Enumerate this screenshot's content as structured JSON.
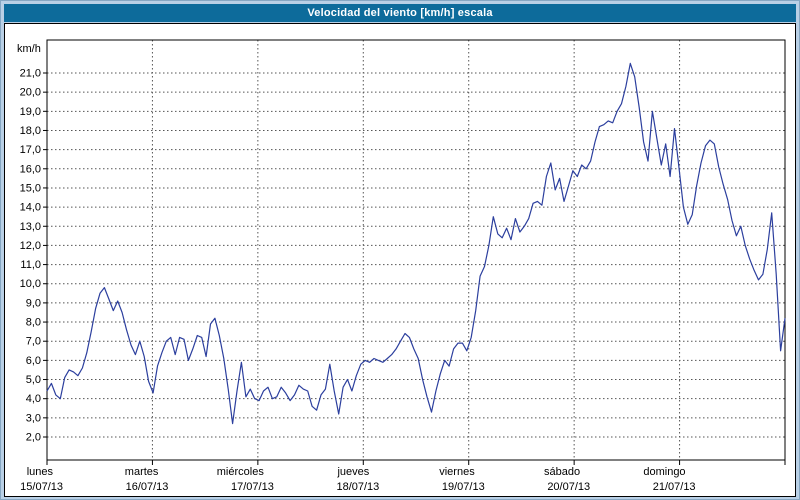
{
  "window": {
    "title": "Velocidad del viento [km/h] escala"
  },
  "colors": {
    "frame": "#b9d0e6",
    "titlebar_bg": "#0d6b9b",
    "titlebar_text": "#ffffff",
    "panel_bg": "#ffffff",
    "plot_border": "#000000",
    "grid": "#555555",
    "line": "#2c3f9e",
    "label_text": "#000000"
  },
  "chart_data": {
    "type": "line",
    "title": "Velocidad del viento [km/h] escala",
    "xlabel": "",
    "ylabel": "km/h",
    "ylim": [
      2,
      21
    ],
    "y_tick_step": 1,
    "y_tick_labels": [
      "2,0",
      "3,0",
      "4,0",
      "5,0",
      "6,0",
      "7,0",
      "8,0",
      "9,0",
      "10,0",
      "11,0",
      "12,0",
      "13,0",
      "14,0",
      "15,0",
      "16,0",
      "17,0",
      "18,0",
      "19,0",
      "20,0",
      "21,0"
    ],
    "grid": true,
    "legend_position": "none",
    "points_per_day": 24,
    "days": [
      {
        "name": "lunes",
        "date": "15/07/13"
      },
      {
        "name": "martes",
        "date": "16/07/13"
      },
      {
        "name": "miércoles",
        "date": "17/07/13"
      },
      {
        "name": "jueves",
        "date": "18/07/13"
      },
      {
        "name": "viernes",
        "date": "19/07/13"
      },
      {
        "name": "sábado",
        "date": "20/07/13"
      },
      {
        "name": "domingo",
        "date": "21/07/13"
      }
    ],
    "series": [
      {
        "name": "Velocidad del viento",
        "values": [
          4.4,
          4.8,
          4.2,
          4.0,
          5.1,
          5.5,
          5.4,
          5.2,
          5.6,
          6.4,
          7.5,
          8.7,
          9.5,
          9.8,
          9.2,
          8.6,
          9.1,
          8.5,
          7.6,
          6.8,
          6.3,
          7.0,
          6.2,
          4.9,
          4.3,
          5.7,
          6.4,
          7.0,
          7.2,
          6.3,
          7.2,
          7.1,
          6.0,
          6.6,
          7.3,
          7.2,
          6.2,
          7.9,
          8.2,
          7.3,
          6.1,
          4.5,
          2.7,
          4.4,
          5.9,
          4.1,
          4.5,
          4.0,
          3.9,
          4.4,
          4.6,
          4.0,
          4.1,
          4.6,
          4.3,
          3.9,
          4.2,
          4.7,
          4.5,
          4.4,
          3.6,
          3.4,
          4.2,
          4.5,
          5.8,
          4.4,
          3.2,
          4.6,
          5.0,
          4.4,
          5.2,
          5.8,
          6.0,
          5.9,
          6.1,
          6.0,
          5.9,
          6.1,
          6.3,
          6.6,
          7.0,
          7.4,
          7.2,
          6.6,
          6.1,
          5.0,
          4.1,
          3.3,
          4.4,
          5.3,
          6.0,
          5.7,
          6.6,
          6.9,
          6.9,
          6.5,
          7.2,
          8.6,
          10.4,
          10.9,
          12.0,
          13.5,
          12.6,
          12.4,
          12.9,
          12.3,
          13.4,
          12.7,
          13.0,
          13.4,
          14.2,
          14.3,
          14.1,
          15.6,
          16.3,
          14.9,
          15.5,
          14.3,
          15.1,
          15.9,
          15.6,
          16.2,
          16.0,
          16.4,
          17.4,
          18.2,
          18.3,
          18.5,
          18.4,
          19.0,
          19.4,
          20.3,
          21.5,
          20.8,
          19.2,
          17.4,
          16.4,
          19.0,
          17.6,
          16.2,
          17.3,
          15.6,
          18.1,
          16.1,
          14.0,
          13.1,
          13.6,
          15.1,
          16.3,
          17.2,
          17.5,
          17.3,
          16.1,
          15.2,
          14.4,
          13.3,
          12.5,
          13.0,
          12.0,
          11.3,
          10.7,
          10.2,
          10.5,
          11.8,
          13.7,
          10.5,
          6.5,
          8.2
        ]
      }
    ]
  }
}
